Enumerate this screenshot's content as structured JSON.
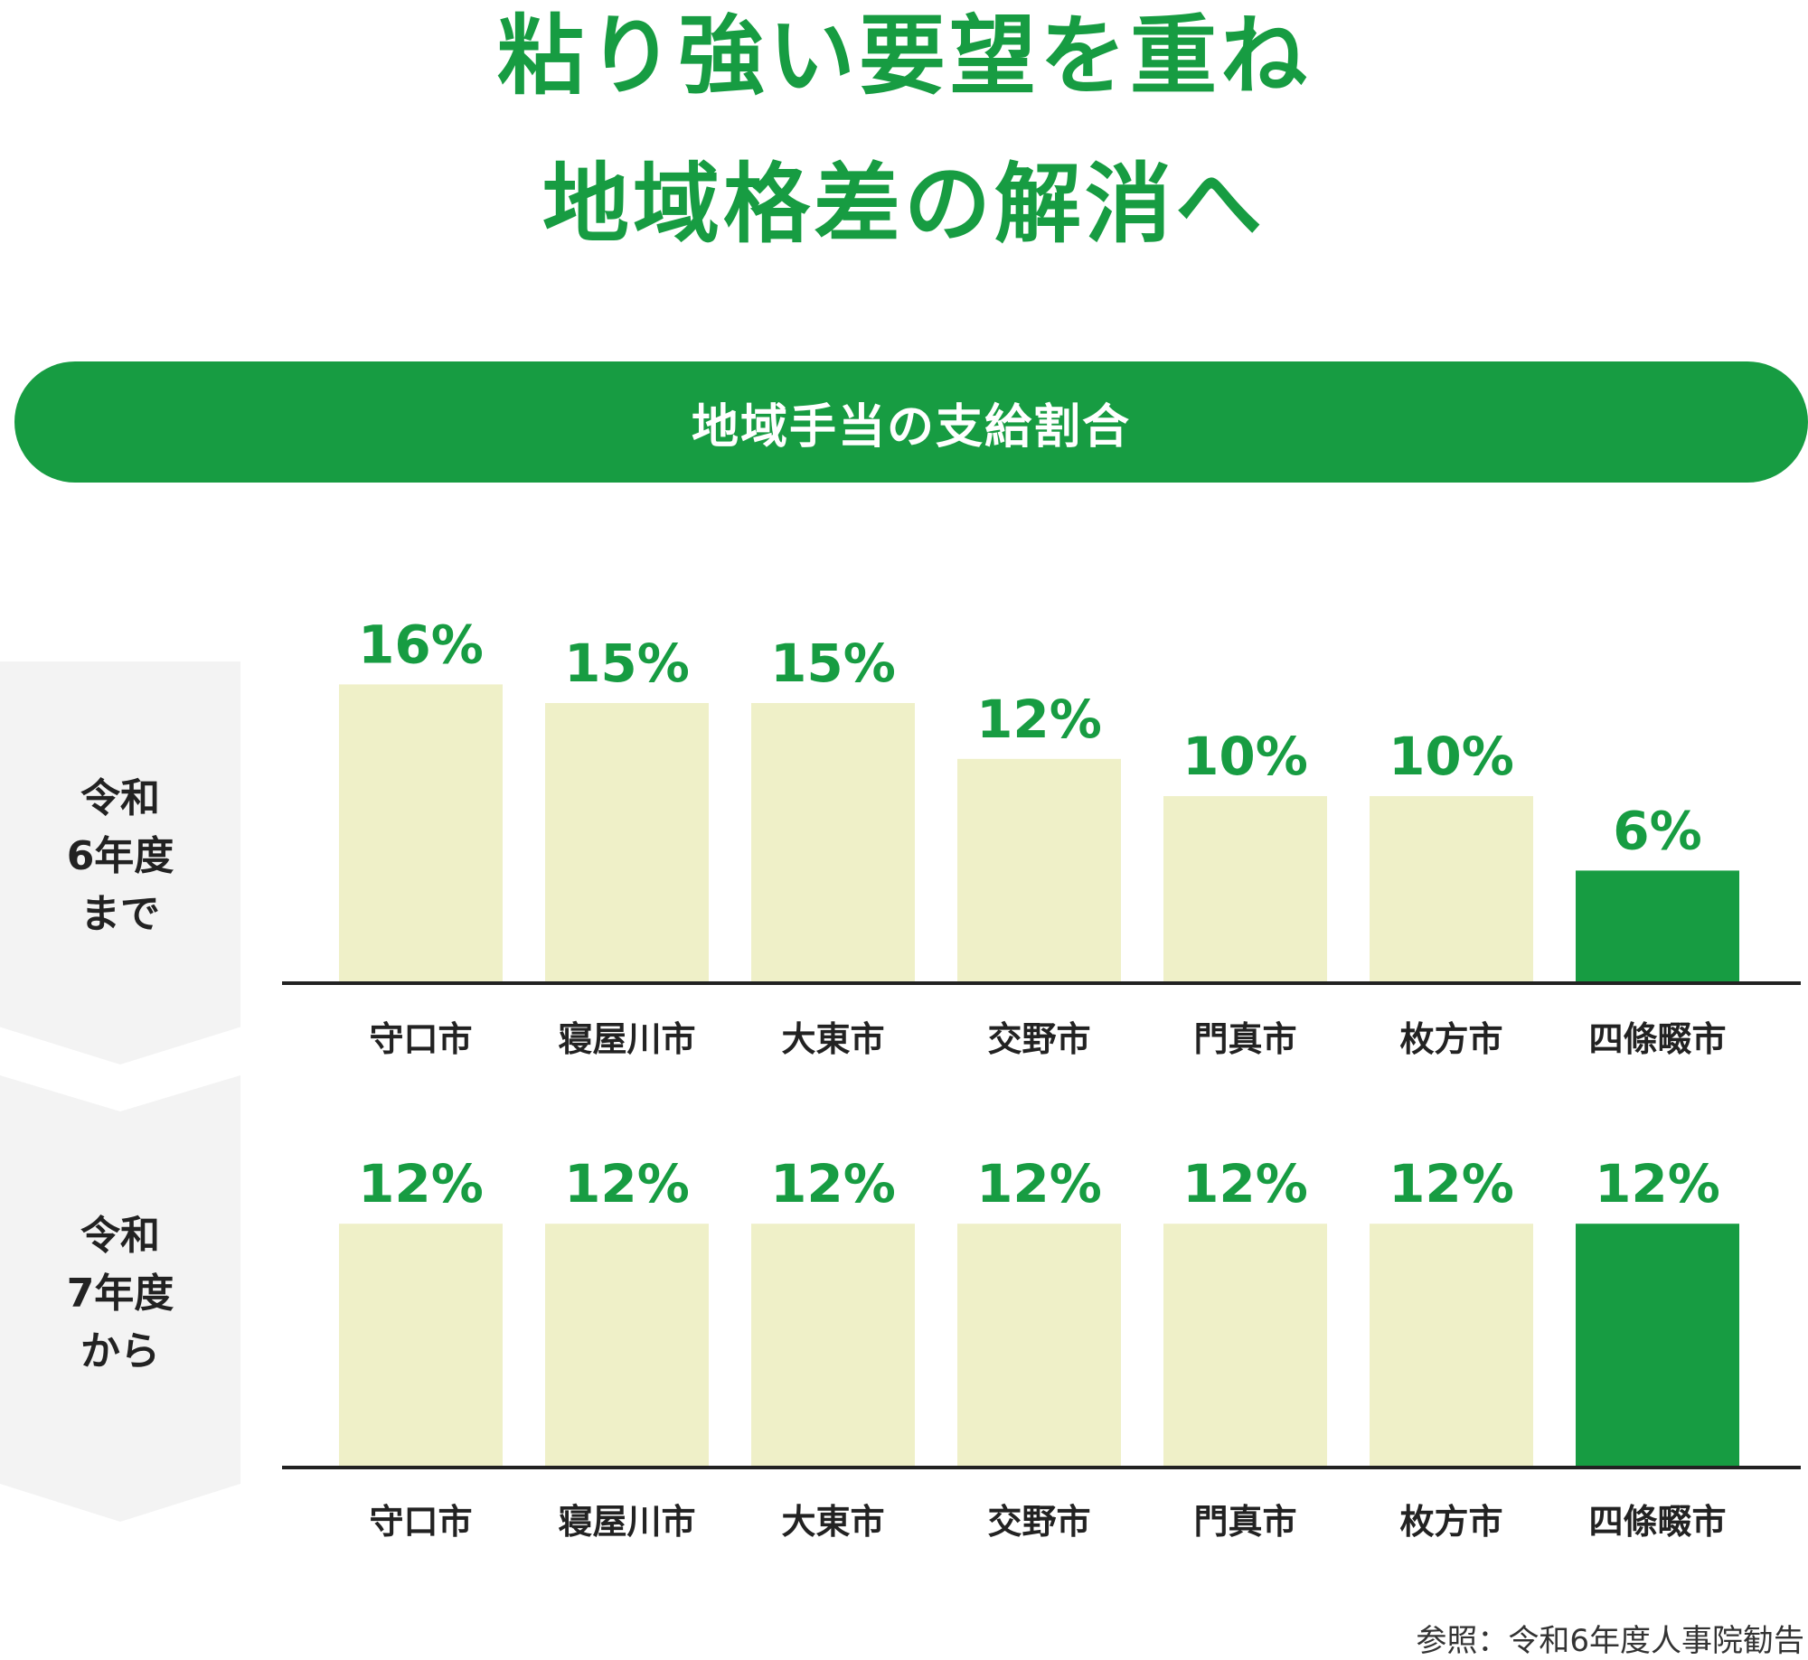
{
  "title_line1": "粘り強い要望を重ね",
  "title_line2": "地域格差の解消へ",
  "banner": "地域手当の支給割合",
  "source": "参照：令和6年度人事院勧告",
  "colors": {
    "accent": "#179c42",
    "bar_default": "#eff0c8",
    "bar_highlight": "#179c42",
    "side_bg": "#f3f3f3"
  },
  "chart_data": [
    {
      "type": "bar",
      "row_label": "令和\n6年度\nまで",
      "categories": [
        "守口市",
        "寝屋川市",
        "大東市",
        "交野市",
        "門真市",
        "枚方市",
        "四條畷市"
      ],
      "values": [
        16,
        15,
        15,
        12,
        10,
        10,
        6
      ],
      "value_labels": [
        "16%",
        "15%",
        "15%",
        "12%",
        "10%",
        "10%",
        "6%"
      ],
      "highlight": "四條畷市",
      "ylim": [
        0,
        16
      ]
    },
    {
      "type": "bar",
      "row_label": "令和\n7年度\nから",
      "categories": [
        "守口市",
        "寝屋川市",
        "大東市",
        "交野市",
        "門真市",
        "枚方市",
        "四條畷市"
      ],
      "values": [
        12,
        12,
        12,
        12,
        12,
        12,
        12
      ],
      "value_labels": [
        "12%",
        "12%",
        "12%",
        "12%",
        "12%",
        "12%",
        "12%"
      ],
      "highlight": "四條畷市",
      "ylim": [
        0,
        16
      ]
    }
  ]
}
